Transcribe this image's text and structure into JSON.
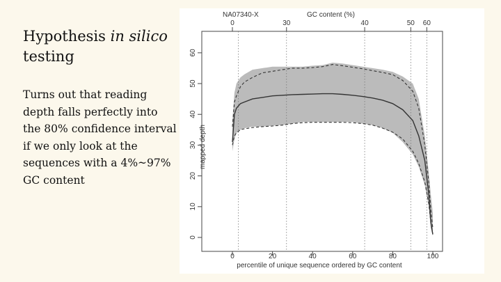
{
  "slide": {
    "title_plain": "Hypothesis ",
    "title_italic": "in silico",
    "title_rest": "testing",
    "body": "Turns out that reading depth falls perfectly into the 80% confidence interval if we only look at the sequences with a 4%~97% GC content"
  },
  "chart_data": {
    "type": "line",
    "title": "NA07340-X",
    "top_axis_label": "GC content (%)",
    "top_axis_ticks": [
      {
        "label": "0",
        "at_percentile": 0
      },
      {
        "label": "30",
        "at_percentile": 27
      },
      {
        "label": "40",
        "at_percentile": 66
      },
      {
        "label": "50",
        "at_percentile": 89
      },
      {
        "label": "60",
        "at_percentile": 97
      }
    ],
    "xlabel": "percentile of unique sequence ordered by GC content",
    "ylabel": "mapped depth",
    "xlim": [
      0,
      100
    ],
    "ylim": [
      0,
      62
    ],
    "x_ticks": [
      0,
      20,
      40,
      60,
      80,
      100
    ],
    "y_ticks": [
      0,
      10,
      20,
      30,
      40,
      50,
      60
    ],
    "x": [
      0,
      1,
      2,
      4,
      6,
      10,
      15,
      20,
      25,
      30,
      35,
      40,
      45,
      50,
      55,
      60,
      65,
      70,
      75,
      80,
      85,
      90,
      93,
      96,
      98,
      99,
      100
    ],
    "series": [
      {
        "style": "band",
        "color": "#bbbbbb",
        "lower": [
          28,
          32,
          34,
          35,
          35.5,
          36,
          36,
          36.3,
          36.5,
          37,
          37.5,
          37.5,
          37.5,
          37.5,
          37.5,
          37.5,
          37,
          36.5,
          35.5,
          34,
          31,
          27,
          23,
          17,
          10,
          3,
          0.5
        ],
        "upper": [
          38,
          47,
          50,
          52,
          53,
          54.5,
          55,
          55.5,
          55.5,
          55.5,
          55.5,
          55.8,
          56,
          56.8,
          56.5,
          56,
          55.5,
          55,
          54.5,
          53.8,
          52.3,
          50,
          45,
          33,
          21,
          14,
          8
        ]
      },
      {
        "style": "solid",
        "color": "#333333",
        "values": [
          31,
          40,
          42,
          43.5,
          44,
          45,
          45.5,
          46,
          46.2,
          46.4,
          46.5,
          46.6,
          46.7,
          46.7,
          46.5,
          46.2,
          45.8,
          45.3,
          44.6,
          43.5,
          41.5,
          38,
          33,
          25,
          14,
          5,
          1
        ]
      },
      {
        "style": "dashed",
        "color": "#333333",
        "values": [
          36,
          44,
          46,
          49,
          50.5,
          52,
          53.5,
          54,
          54.5,
          55,
          55,
          55.2,
          55.5,
          56.2,
          55.8,
          55.3,
          54.8,
          54.2,
          53.6,
          52.9,
          51,
          47.5,
          42,
          30,
          18,
          9,
          3
        ]
      },
      {
        "style": "dashed",
        "color": "#333333",
        "values": [
          30,
          33,
          34,
          35,
          35.3,
          35.7,
          36,
          36.2,
          36.5,
          37,
          37.3,
          37.4,
          37.4,
          37.4,
          37.4,
          37.3,
          37,
          36.5,
          35.5,
          34.2,
          32,
          28,
          24,
          18,
          11,
          5,
          1
        ]
      }
    ],
    "reference_lines_x": [
      3,
      27,
      66,
      89,
      97
    ],
    "grid": false,
    "legend": "none"
  }
}
